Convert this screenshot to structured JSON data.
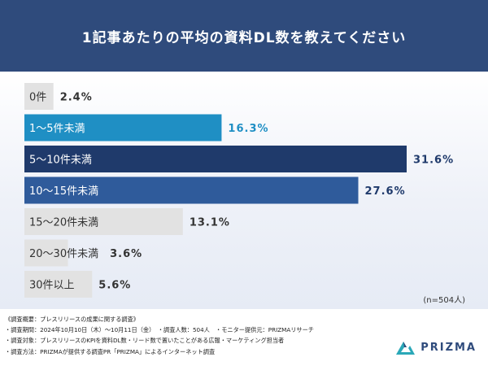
{
  "title": "1記事あたりの平均の資料DL数を教えてください",
  "sample_note": "(n=504人)",
  "footer": {
    "lines": [
      "《調査概要：プレスリリースの成果に関する調査》",
      "・調査期間：2024年10月10日（木）〜10月11日（金）　・調査人数：504人　・モニター提供元：PRIZMAリサーチ",
      "・調査対象：プレスリリースのKPIを資料DL数・リード数で置いたことがある広報・マーケティング担当者",
      "・調査方法：PRIZMAが提供する調査PR「PRIZMA」によるインターネット調査"
    ]
  },
  "brand": {
    "name": "PRIZMA",
    "icon": "prizma-mountain-logo-icon"
  },
  "colors": {
    "header": "#2f4b7c",
    "bar_highlight_1": "#1f8fc4",
    "bar_highlight_2": "#1f3a6b",
    "bar_highlight_3": "#2f5b9b",
    "bar_default": "#e2e2e2"
  },
  "chart_data": {
    "type": "bar",
    "orientation": "horizontal",
    "categories": [
      "0件",
      "1〜5件未満",
      "5〜10件未満",
      "10〜15件未満",
      "15〜20件未満",
      "20〜30件未満",
      "30件以上"
    ],
    "values": [
      2.4,
      16.3,
      31.6,
      27.6,
      13.1,
      3.6,
      5.6
    ],
    "value_labels": [
      "2.4%",
      "16.3%",
      "31.6%",
      "27.6%",
      "13.1%",
      "3.6%",
      "5.6%"
    ],
    "unit": "%",
    "bar_colors": [
      "#e2e2e2",
      "#1f8fc4",
      "#1f3a6b",
      "#2f5b9b",
      "#e2e2e2",
      "#e2e2e2",
      "#e2e2e2"
    ],
    "label_colors": [
      "#333333",
      "#ffffff",
      "#ffffff",
      "#ffffff",
      "#333333",
      "#333333",
      "#333333"
    ],
    "value_label_colors": [
      "#333333",
      "#1f8fc4",
      "#1f3a6b",
      "#1f3a6b",
      "#333333",
      "#333333",
      "#333333"
    ],
    "xlim": [
      0,
      31.6
    ],
    "grid": false,
    "legend": "none"
  }
}
